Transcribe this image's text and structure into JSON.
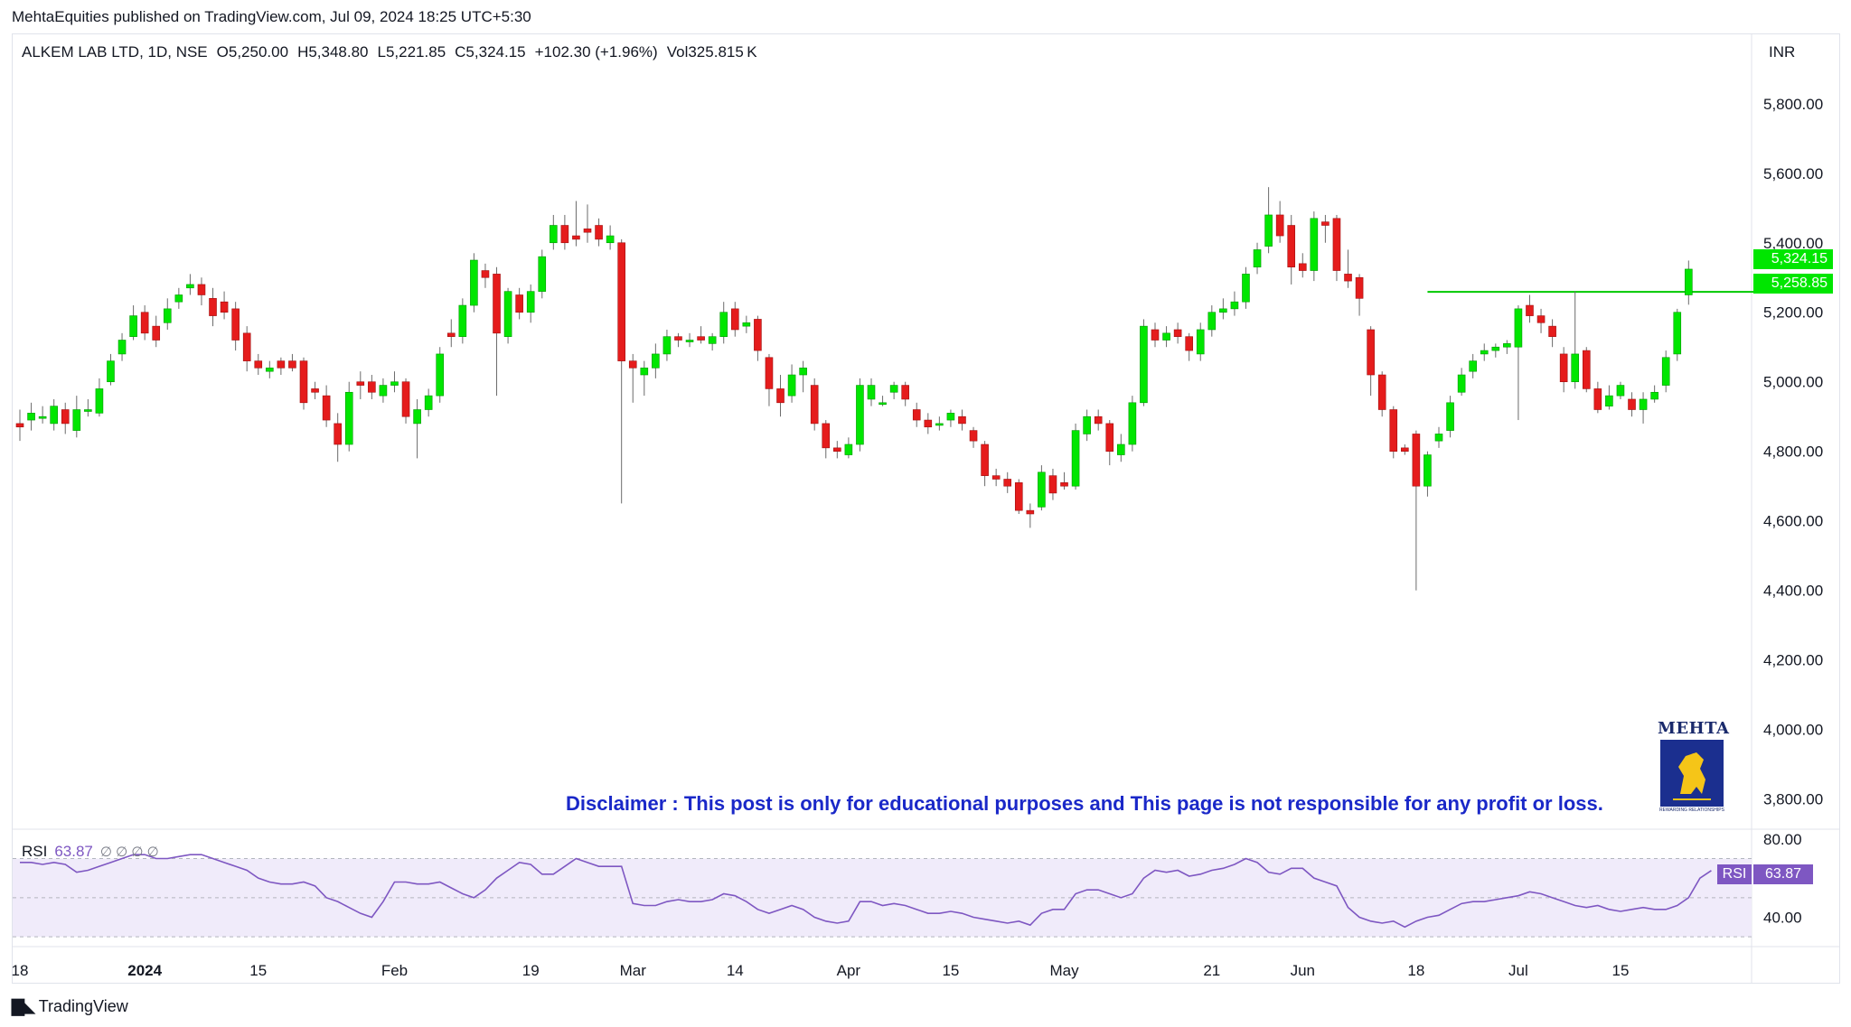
{
  "header": {
    "published_line": "MehtaEquities published on TradingView.com, Jul 09, 2024 18:25 UTC+5:30"
  },
  "legend": {
    "symbol": "ALKEM LAB LTD, 1D, NSE",
    "open": "O5,250.00",
    "high": "H5,348.80",
    "low": "L5,221.85",
    "close": "C5,324.15",
    "change": "+102.30 (+1.96%)",
    "volume": "Vol325.815 K"
  },
  "currency": "INR",
  "price_tags": {
    "last": "5,324.15",
    "line": "5,258.85"
  },
  "rsi": {
    "label": "RSI",
    "value": "63.87",
    "tag_label": "RSI",
    "tag_value": "63.87",
    "extra": "∅ ∅ ∅ ∅"
  },
  "disclaimer": "Disclaimer : This post is only for educational purposes and This page is not responsible for any profit or loss.",
  "logo": {
    "text": "MEHTA",
    "tagline": "REWARDING RELATIONSHIPS"
  },
  "footer": {
    "brand": "TradingView"
  },
  "colors": {
    "up": "#00e600",
    "down": "#e51c1c",
    "line": "#00c800",
    "rsi": "#7e57c2",
    "rsi_band": "#f0ebfa",
    "disclaimer": "#1a28c8"
  },
  "chart_data": {
    "type": "candlestick",
    "title": "ALKEM LAB LTD, 1D, NSE",
    "ylim": [
      3760,
      5880
    ],
    "yticks": [
      "5,800.00",
      "5,600.00",
      "5,400.00",
      "5,200.00",
      "5,000.00",
      "4,800.00",
      "4,600.00",
      "4,400.00",
      "4,200.00",
      "4,000.00",
      "3,800.00"
    ],
    "ytick_values": [
      5800,
      5600,
      5400,
      5200,
      5000,
      4800,
      4600,
      4400,
      4200,
      4000,
      3800
    ],
    "xticks": [
      "18",
      "2024",
      "15",
      "Feb",
      "19",
      "Mar",
      "14",
      "Apr",
      "15",
      "May",
      "21",
      "Jun",
      "18",
      "Jul",
      "15"
    ],
    "xtick_index": [
      0,
      11,
      21,
      33,
      45,
      54,
      63,
      73,
      82,
      92,
      105,
      113,
      123,
      132,
      141
    ],
    "horizontal_line": {
      "value": 5258.85,
      "from_index": 124
    },
    "candles": [
      [
        4880,
        4870,
        4920,
        4830
      ],
      [
        4890,
        4910,
        4940,
        4860
      ],
      [
        4900,
        4900,
        4930,
        4880
      ],
      [
        4880,
        4930,
        4950,
        4860
      ],
      [
        4920,
        4880,
        4940,
        4850
      ],
      [
        4860,
        4920,
        4960,
        4840
      ],
      [
        4920,
        4920,
        4950,
        4900
      ],
      [
        4910,
        4980,
        5010,
        4900
      ],
      [
        5000,
        5060,
        5080,
        4990
      ],
      [
        5080,
        5120,
        5140,
        5060
      ],
      [
        5130,
        5190,
        5220,
        5120
      ],
      [
        5200,
        5140,
        5220,
        5120
      ],
      [
        5160,
        5120,
        5190,
        5100
      ],
      [
        5170,
        5210,
        5240,
        5150
      ],
      [
        5230,
        5250,
        5270,
        5210
      ],
      [
        5270,
        5280,
        5310,
        5250
      ],
      [
        5280,
        5250,
        5300,
        5220
      ],
      [
        5240,
        5190,
        5270,
        5160
      ],
      [
        5230,
        5200,
        5260,
        5180
      ],
      [
        5210,
        5120,
        5230,
        5090
      ],
      [
        5140,
        5060,
        5160,
        5030
      ],
      [
        5060,
        5040,
        5080,
        5020
      ],
      [
        5030,
        5040,
        5060,
        5010
      ],
      [
        5060,
        5040,
        5070,
        5020
      ],
      [
        5060,
        5040,
        5080,
        5030
      ],
      [
        5060,
        4940,
        5070,
        4920
      ],
      [
        4980,
        4970,
        5000,
        4950
      ],
      [
        4960,
        4890,
        4990,
        4870
      ],
      [
        4880,
        4820,
        4910,
        4770
      ],
      [
        4820,
        4970,
        5000,
        4800
      ],
      [
        5000,
        4990,
        5030,
        4950
      ],
      [
        5000,
        4970,
        5020,
        4950
      ],
      [
        4960,
        4990,
        5010,
        4940
      ],
      [
        4990,
        5000,
        5030,
        4970
      ],
      [
        5000,
        4900,
        5010,
        4880
      ],
      [
        4880,
        4920,
        4950,
        4780
      ],
      [
        4920,
        4960,
        4980,
        4900
      ],
      [
        4960,
        5080,
        5100,
        4940
      ],
      [
        5140,
        5130,
        5180,
        5100
      ],
      [
        5130,
        5220,
        5240,
        5110
      ],
      [
        5220,
        5350,
        5370,
        5200
      ],
      [
        5320,
        5300,
        5340,
        5270
      ],
      [
        5310,
        5140,
        5330,
        4960
      ],
      [
        5130,
        5260,
        5270,
        5110
      ],
      [
        5250,
        5200,
        5270,
        5180
      ],
      [
        5200,
        5260,
        5280,
        5170
      ],
      [
        5260,
        5360,
        5380,
        5240
      ],
      [
        5400,
        5450,
        5480,
        5380
      ],
      [
        5450,
        5400,
        5480,
        5380
      ],
      [
        5420,
        5410,
        5520,
        5390
      ],
      [
        5440,
        5430,
        5510,
        5400
      ],
      [
        5450,
        5410,
        5470,
        5390
      ],
      [
        5400,
        5420,
        5450,
        5380
      ],
      [
        5400,
        5060,
        5410,
        4650
      ],
      [
        5060,
        5040,
        5080,
        4940
      ],
      [
        5020,
        5040,
        5060,
        4960
      ],
      [
        5040,
        5080,
        5110,
        5010
      ],
      [
        5080,
        5130,
        5150,
        5060
      ],
      [
        5130,
        5120,
        5140,
        5100
      ],
      [
        5120,
        5120,
        5140,
        5100
      ],
      [
        5130,
        5120,
        5160,
        5110
      ],
      [
        5110,
        5130,
        5140,
        5090
      ],
      [
        5130,
        5200,
        5230,
        5110
      ],
      [
        5210,
        5150,
        5230,
        5130
      ],
      [
        5160,
        5170,
        5190,
        5140
      ],
      [
        5180,
        5090,
        5190,
        5060
      ],
      [
        5070,
        4980,
        5080,
        4930
      ],
      [
        4980,
        4940,
        5020,
        4900
      ],
      [
        4960,
        5020,
        5050,
        4940
      ],
      [
        5020,
        5040,
        5060,
        4970
      ],
      [
        4990,
        4880,
        5010,
        4860
      ],
      [
        4880,
        4810,
        4890,
        4780
      ],
      [
        4810,
        4800,
        4830,
        4780
      ],
      [
        4790,
        4820,
        4840,
        4780
      ],
      [
        4820,
        4990,
        5010,
        4800
      ],
      [
        4950,
        4990,
        5010,
        4930
      ],
      [
        4940,
        4940,
        4960,
        4930
      ],
      [
        4970,
        4990,
        5000,
        4950
      ],
      [
        4990,
        4950,
        5000,
        4930
      ],
      [
        4920,
        4890,
        4940,
        4870
      ],
      [
        4890,
        4870,
        4910,
        4850
      ],
      [
        4880,
        4880,
        4900,
        4860
      ],
      [
        4890,
        4910,
        4920,
        4870
      ],
      [
        4900,
        4880,
        4920,
        4860
      ],
      [
        4860,
        4830,
        4870,
        4810
      ],
      [
        4820,
        4730,
        4830,
        4700
      ],
      [
        4730,
        4720,
        4750,
        4700
      ],
      [
        4720,
        4700,
        4740,
        4680
      ],
      [
        4710,
        4630,
        4720,
        4620
      ],
      [
        4630,
        4620,
        4650,
        4580
      ],
      [
        4640,
        4740,
        4760,
        4630
      ],
      [
        4730,
        4680,
        4750,
        4660
      ],
      [
        4710,
        4700,
        4740,
        4690
      ],
      [
        4700,
        4860,
        4880,
        4690
      ],
      [
        4850,
        4900,
        4920,
        4830
      ],
      [
        4900,
        4880,
        4920,
        4860
      ],
      [
        4880,
        4800,
        4890,
        4760
      ],
      [
        4790,
        4820,
        4850,
        4770
      ],
      [
        4820,
        4940,
        4960,
        4800
      ],
      [
        4940,
        5160,
        5180,
        4930
      ],
      [
        5150,
        5120,
        5170,
        5100
      ],
      [
        5120,
        5140,
        5160,
        5100
      ],
      [
        5150,
        5130,
        5170,
        5110
      ],
      [
        5130,
        5090,
        5140,
        5060
      ],
      [
        5080,
        5150,
        5170,
        5060
      ],
      [
        5150,
        5200,
        5220,
        5130
      ],
      [
        5200,
        5210,
        5240,
        5180
      ],
      [
        5210,
        5230,
        5260,
        5190
      ],
      [
        5230,
        5310,
        5330,
        5210
      ],
      [
        5330,
        5380,
        5400,
        5310
      ],
      [
        5390,
        5480,
        5560,
        5370
      ],
      [
        5480,
        5420,
        5520,
        5400
      ],
      [
        5450,
        5330,
        5480,
        5280
      ],
      [
        5340,
        5320,
        5370,
        5300
      ],
      [
        5320,
        5470,
        5490,
        5290
      ],
      [
        5460,
        5450,
        5480,
        5400
      ],
      [
        5470,
        5320,
        5480,
        5290
      ],
      [
        5310,
        5290,
        5380,
        5270
      ],
      [
        5300,
        5240,
        5310,
        5190
      ],
      [
        5150,
        5020,
        5160,
        4960
      ],
      [
        5020,
        4920,
        5030,
        4900
      ],
      [
        4920,
        4800,
        4930,
        4780
      ],
      [
        4810,
        4800,
        4820,
        4790
      ],
      [
        4850,
        4700,
        4860,
        4400
      ],
      [
        4700,
        4790,
        4800,
        4670
      ],
      [
        4830,
        4850,
        4870,
        4810
      ],
      [
        4860,
        4940,
        4960,
        4840
      ],
      [
        4970,
        5020,
        5040,
        4960
      ],
      [
        5030,
        5060,
        5080,
        5010
      ],
      [
        5080,
        5090,
        5110,
        5060
      ],
      [
        5090,
        5100,
        5110,
        5070
      ],
      [
        5100,
        5110,
        5120,
        5080
      ],
      [
        5100,
        5210,
        5220,
        4890
      ],
      [
        5220,
        5190,
        5250,
        5170
      ],
      [
        5190,
        5170,
        5210,
        5140
      ],
      [
        5160,
        5130,
        5180,
        5100
      ],
      [
        5080,
        5000,
        5100,
        4970
      ],
      [
        5000,
        5080,
        5260,
        4980
      ],
      [
        5090,
        4980,
        5100,
        4970
      ],
      [
        4980,
        4920,
        5000,
        4910
      ],
      [
        4930,
        4960,
        4990,
        4920
      ],
      [
        4960,
        4990,
        5000,
        4950
      ],
      [
        4950,
        4920,
        4970,
        4900
      ],
      [
        4920,
        4950,
        4970,
        4880
      ],
      [
        4950,
        4970,
        4990,
        4940
      ],
      [
        4990,
        5070,
        5090,
        4970
      ],
      [
        5080,
        5200,
        5210,
        5060
      ],
      [
        5250,
        5324.15,
        5348.8,
        5221.85
      ]
    ],
    "rsi": {
      "label": "RSI",
      "ylim": [
        25,
        85
      ],
      "yticks": [
        "80.00",
        "40.00"
      ],
      "ytick_values": [
        80,
        40
      ],
      "band": [
        30,
        70
      ],
      "values": [
        68,
        68,
        67,
        68,
        67,
        63,
        64,
        66,
        68,
        70,
        72,
        72,
        70,
        70,
        71,
        72,
        72,
        70,
        68,
        66,
        64,
        60,
        58,
        57,
        57,
        58,
        56,
        50,
        48,
        45,
        42,
        40,
        48,
        58,
        58,
        57,
        57,
        58,
        55,
        52,
        50,
        54,
        60,
        64,
        68,
        67,
        62,
        62,
        66,
        70,
        68,
        66,
        66,
        66,
        47,
        46,
        46,
        48,
        49,
        48,
        48,
        49,
        52,
        51,
        48,
        44,
        42,
        44,
        46,
        44,
        40,
        38,
        37,
        38,
        48,
        48,
        46,
        47,
        46,
        44,
        42,
        42,
        43,
        42,
        40,
        39,
        38,
        37,
        38,
        36,
        42,
        44,
        44,
        52,
        54,
        54,
        52,
        50,
        52,
        60,
        64,
        63,
        64,
        61,
        62,
        64,
        65,
        67,
        70,
        68,
        63,
        62,
        65,
        65,
        60,
        58,
        56,
        45,
        40,
        38,
        37,
        38,
        35,
        38,
        40,
        41,
        44,
        47,
        48,
        48,
        49,
        50,
        51,
        53,
        52,
        50,
        48,
        46,
        45,
        46,
        44,
        43,
        44,
        45,
        44,
        44,
        46,
        50,
        60,
        63.87
      ]
    }
  }
}
